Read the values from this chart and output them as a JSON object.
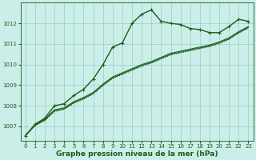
{
  "bg_color": "#cceee8",
  "grid_color": "#99cccc",
  "line_color": "#1a5c1a",
  "xlabel": "Graphe pression niveau de la mer (hPa)",
  "xlabel_fontsize": 6.5,
  "xlim": [
    -0.5,
    23.5
  ],
  "ylim": [
    1006.3,
    1013.0
  ],
  "yticks": [
    1007,
    1008,
    1009,
    1010,
    1011,
    1012
  ],
  "xticks": [
    0,
    1,
    2,
    3,
    4,
    5,
    6,
    7,
    8,
    9,
    10,
    11,
    12,
    13,
    14,
    15,
    16,
    17,
    18,
    19,
    20,
    21,
    22,
    23
  ],
  "series": [
    {
      "y": [
        1006.55,
        1007.1,
        1007.4,
        1008.0,
        1008.1,
        1008.5,
        1008.8,
        1009.3,
        1010.0,
        1010.85,
        1011.05,
        1012.0,
        1012.45,
        1012.65,
        1012.1,
        1012.0,
        1011.95,
        1011.75,
        1011.7,
        1011.55,
        1011.55,
        1011.85,
        1012.2,
        1012.1
      ],
      "marker": true,
      "lw": 1.0,
      "dotted": false
    },
    {
      "y": [
        1006.55,
        1007.05,
        1007.35,
        1007.8,
        1007.9,
        1008.2,
        1008.4,
        1008.65,
        1009.05,
        1009.4,
        1009.6,
        1009.8,
        1010.0,
        1010.15,
        1010.35,
        1010.55,
        1010.65,
        1010.75,
        1010.85,
        1010.95,
        1011.1,
        1011.3,
        1011.6,
        1011.85
      ],
      "marker": false,
      "lw": 0.8,
      "dotted": false
    },
    {
      "y": [
        1006.55,
        1007.05,
        1007.3,
        1007.75,
        1007.85,
        1008.15,
        1008.35,
        1008.6,
        1009.0,
        1009.35,
        1009.55,
        1009.75,
        1009.95,
        1010.1,
        1010.3,
        1010.5,
        1010.6,
        1010.7,
        1010.8,
        1010.9,
        1011.05,
        1011.25,
        1011.55,
        1011.8
      ],
      "marker": false,
      "lw": 0.8,
      "dotted": false
    },
    {
      "y": [
        1006.55,
        1007.05,
        1007.28,
        1007.72,
        1007.82,
        1008.12,
        1008.32,
        1008.57,
        1008.97,
        1009.32,
        1009.52,
        1009.72,
        1009.92,
        1010.07,
        1010.27,
        1010.47,
        1010.57,
        1010.67,
        1010.77,
        1010.87,
        1011.02,
        1011.22,
        1011.52,
        1011.77
      ],
      "marker": false,
      "lw": 0.8,
      "dotted": true
    }
  ]
}
